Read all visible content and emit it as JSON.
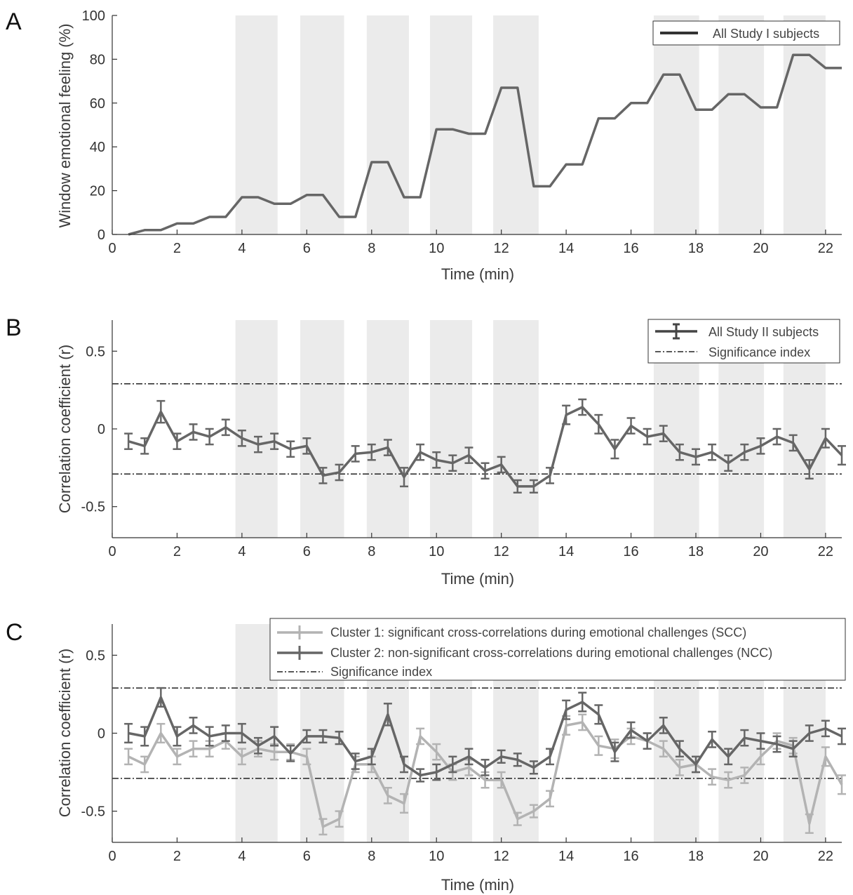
{
  "chart_data": [
    {
      "panel": "A",
      "type": "line",
      "xlabel": "Time (min)",
      "ylabel": "Window emotional feeling (%)",
      "xlim": [
        0,
        22.5
      ],
      "ylim": [
        0,
        100
      ],
      "xticks": [
        0,
        2,
        4,
        6,
        8,
        10,
        12,
        14,
        16,
        18,
        20,
        22
      ],
      "yticks": [
        0,
        20,
        40,
        60,
        80,
        100
      ],
      "shaded_intervals": [
        [
          3.8,
          5.1
        ],
        [
          5.8,
          7.15
        ],
        [
          7.85,
          9.15
        ],
        [
          9.8,
          11.1
        ],
        [
          11.75,
          13.15
        ],
        [
          16.7,
          18.1
        ],
        [
          18.7,
          20.1
        ],
        [
          20.7,
          22.0
        ]
      ],
      "legend": {
        "position": "top-right",
        "entries": [
          "All Study I subjects"
        ]
      },
      "series": [
        {
          "name": "All Study I subjects",
          "x": [
            0.5,
            1.0,
            1.5,
            2.0,
            2.5,
            3.0,
            3.5,
            4.0,
            4.5,
            5.0,
            5.5,
            6.0,
            6.5,
            7.0,
            7.5,
            8.0,
            8.5,
            9.0,
            9.5,
            10.0,
            10.5,
            11.0,
            11.5,
            12.0,
            12.5,
            13.0,
            13.5,
            14.0,
            14.5,
            15.0,
            15.5,
            16.0,
            16.5,
            17.0,
            17.5,
            18.0,
            18.5,
            19.0,
            19.5,
            20.0,
            20.5,
            21.0,
            21.5,
            22.0,
            22.5
          ],
          "values": [
            0,
            2,
            2,
            5,
            5,
            8,
            8,
            17,
            17,
            14,
            14,
            18,
            18,
            8,
            8,
            33,
            33,
            17,
            17,
            48,
            48,
            46,
            46,
            67,
            67,
            22,
            22,
            32,
            32,
            53,
            53,
            60,
            60,
            73,
            73,
            57,
            57,
            64,
            64,
            58,
            58,
            82,
            82,
            76,
            76
          ]
        }
      ]
    },
    {
      "panel": "B",
      "type": "line",
      "xlabel": "Time (min)",
      "ylabel": "Correlation coefficient (r)",
      "xlim": [
        0,
        22.5
      ],
      "ylim": [
        -0.7,
        0.7
      ],
      "xticks": [
        0,
        2,
        4,
        6,
        8,
        10,
        12,
        14,
        16,
        18,
        20,
        22
      ],
      "yticks": [
        -0.5,
        0,
        0.5
      ],
      "significance_levels": [
        0.29,
        -0.29
      ],
      "shaded_intervals": [
        [
          3.8,
          5.1
        ],
        [
          5.8,
          7.15
        ],
        [
          7.85,
          9.15
        ],
        [
          9.8,
          11.1
        ],
        [
          11.75,
          13.15
        ],
        [
          16.7,
          18.1
        ],
        [
          18.7,
          20.1
        ],
        [
          20.7,
          22.0
        ]
      ],
      "legend": {
        "position": "top-right",
        "entries": [
          "All Study II subjects",
          "Significance index"
        ]
      },
      "series": [
        {
          "name": "All Study II subjects",
          "x": [
            0.5,
            1.0,
            1.5,
            2.0,
            2.5,
            3.0,
            3.5,
            4.0,
            4.5,
            5.0,
            5.5,
            6.0,
            6.5,
            7.0,
            7.5,
            8.0,
            8.5,
            9.0,
            9.5,
            10.0,
            10.5,
            11.0,
            11.5,
            12.0,
            12.5,
            13.0,
            13.5,
            14.0,
            14.5,
            15.0,
            15.5,
            16.0,
            16.5,
            17.0,
            17.5,
            18.0,
            18.5,
            19.0,
            19.5,
            20.0,
            20.5,
            21.0,
            21.5,
            22.0,
            22.5
          ],
          "values": [
            -0.08,
            -0.11,
            0.11,
            -0.08,
            -0.02,
            -0.05,
            0.01,
            -0.06,
            -0.1,
            -0.08,
            -0.13,
            -0.11,
            -0.3,
            -0.28,
            -0.16,
            -0.15,
            -0.12,
            -0.31,
            -0.15,
            -0.2,
            -0.22,
            -0.17,
            -0.27,
            -0.23,
            -0.37,
            -0.37,
            -0.3,
            0.09,
            0.14,
            0.03,
            -0.13,
            0.02,
            -0.05,
            -0.03,
            -0.15,
            -0.18,
            -0.15,
            -0.22,
            -0.15,
            -0.11,
            -0.05,
            -0.09,
            -0.26,
            -0.06,
            -0.17
          ],
          "errors": [
            0.05,
            0.05,
            0.07,
            0.05,
            0.05,
            0.05,
            0.05,
            0.05,
            0.05,
            0.05,
            0.05,
            0.05,
            0.05,
            0.05,
            0.05,
            0.05,
            0.05,
            0.06,
            0.05,
            0.05,
            0.05,
            0.05,
            0.05,
            0.05,
            0.04,
            0.04,
            0.05,
            0.06,
            0.05,
            0.06,
            0.06,
            0.05,
            0.05,
            0.05,
            0.05,
            0.05,
            0.05,
            0.05,
            0.05,
            0.05,
            0.05,
            0.05,
            0.06,
            0.06,
            0.06
          ]
        }
      ]
    },
    {
      "panel": "C",
      "type": "line",
      "xlabel": "Time (min)",
      "ylabel": "Correlation coefficient (r)",
      "xlim": [
        0,
        22.5
      ],
      "ylim": [
        -0.7,
        0.7
      ],
      "xticks": [
        0,
        2,
        4,
        6,
        8,
        10,
        12,
        14,
        16,
        18,
        20,
        22
      ],
      "yticks": [
        -0.5,
        0,
        0.5
      ],
      "significance_levels": [
        0.29,
        -0.29
      ],
      "shaded_intervals": [
        [
          3.8,
          5.1
        ],
        [
          5.8,
          7.15
        ],
        [
          7.85,
          9.15
        ],
        [
          9.8,
          11.1
        ],
        [
          11.75,
          13.15
        ],
        [
          16.7,
          18.1
        ],
        [
          18.7,
          20.1
        ],
        [
          20.7,
          22.0
        ]
      ],
      "legend": {
        "position": "top-right",
        "entries": [
          "Cluster 1: significant cross-correlations during emotional challenges (SCC)",
          "Cluster 2: non-significant cross-correlations during emotional challenges (NCC)",
          "Significance index"
        ]
      },
      "series": [
        {
          "name": "Cluster 1: significant cross-correlations during emotional challenges (SCC)",
          "x": [
            0.5,
            1.0,
            1.5,
            2.0,
            2.5,
            3.0,
            3.5,
            4.0,
            4.5,
            5.0,
            5.5,
            6.0,
            6.5,
            7.0,
            7.5,
            8.0,
            8.5,
            9.0,
            9.5,
            10.0,
            10.5,
            11.0,
            11.5,
            12.0,
            12.5,
            13.0,
            13.5,
            14.0,
            14.5,
            15.0,
            15.5,
            16.0,
            16.5,
            17.0,
            17.5,
            18.0,
            18.5,
            19.0,
            19.5,
            20.0,
            20.5,
            21.0,
            21.5,
            22.0,
            22.5
          ],
          "values": [
            -0.15,
            -0.2,
            0.0,
            -0.15,
            -0.1,
            -0.1,
            -0.05,
            -0.15,
            -0.1,
            -0.12,
            -0.12,
            -0.15,
            -0.6,
            -0.55,
            -0.2,
            -0.2,
            -0.4,
            -0.45,
            -0.02,
            -0.12,
            -0.25,
            -0.22,
            -0.3,
            -0.3,
            -0.55,
            -0.5,
            -0.42,
            0.05,
            0.07,
            -0.08,
            -0.1,
            -0.02,
            -0.05,
            -0.1,
            -0.22,
            -0.2,
            -0.28,
            -0.3,
            -0.27,
            -0.15,
            -0.05,
            -0.08,
            -0.58,
            -0.15,
            -0.33
          ],
          "errors": [
            0.05,
            0.05,
            0.06,
            0.05,
            0.05,
            0.05,
            0.05,
            0.05,
            0.05,
            0.05,
            0.05,
            0.05,
            0.05,
            0.05,
            0.05,
            0.05,
            0.05,
            0.06,
            0.05,
            0.05,
            0.05,
            0.05,
            0.05,
            0.05,
            0.04,
            0.04,
            0.05,
            0.06,
            0.05,
            0.06,
            0.06,
            0.05,
            0.05,
            0.05,
            0.05,
            0.05,
            0.05,
            0.05,
            0.05,
            0.05,
            0.05,
            0.05,
            0.06,
            0.06,
            0.06
          ]
        },
        {
          "name": "Cluster 2: non-significant cross-correlations during emotional challenges (NCC)",
          "x": [
            0.5,
            1.0,
            1.5,
            2.0,
            2.5,
            3.0,
            3.5,
            4.0,
            4.5,
            5.0,
            5.5,
            6.0,
            6.5,
            7.0,
            7.5,
            8.0,
            8.5,
            9.0,
            9.5,
            10.0,
            10.5,
            11.0,
            11.5,
            12.0,
            12.5,
            13.0,
            13.5,
            14.0,
            14.5,
            15.0,
            15.5,
            16.0,
            16.5,
            17.0,
            17.5,
            18.0,
            18.5,
            19.0,
            19.5,
            20.0,
            20.5,
            21.0,
            21.5,
            22.0,
            22.5
          ],
          "values": [
            0.0,
            -0.02,
            0.23,
            -0.02,
            0.05,
            -0.02,
            0.0,
            0.0,
            -0.08,
            -0.02,
            -0.13,
            -0.02,
            -0.02,
            -0.03,
            -0.18,
            -0.15,
            0.12,
            -0.2,
            -0.27,
            -0.25,
            -0.2,
            -0.15,
            -0.22,
            -0.15,
            -0.17,
            -0.22,
            -0.15,
            0.15,
            0.2,
            0.12,
            -0.12,
            0.02,
            -0.05,
            0.05,
            -0.1,
            -0.2,
            -0.04,
            -0.15,
            -0.03,
            -0.05,
            -0.07,
            -0.1,
            0.0,
            0.03,
            -0.02
          ],
          "errors": [
            0.06,
            0.06,
            0.06,
            0.06,
            0.05,
            0.06,
            0.05,
            0.06,
            0.05,
            0.06,
            0.05,
            0.04,
            0.04,
            0.04,
            0.05,
            0.05,
            0.07,
            0.05,
            0.04,
            0.05,
            0.05,
            0.05,
            0.05,
            0.04,
            0.04,
            0.04,
            0.05,
            0.06,
            0.06,
            0.06,
            0.06,
            0.05,
            0.05,
            0.05,
            0.05,
            0.05,
            0.05,
            0.05,
            0.05,
            0.05,
            0.05,
            0.05,
            0.05,
            0.05,
            0.05
          ]
        }
      ]
    }
  ],
  "panels": {
    "A": {
      "letter": "A",
      "xlabel": "Time (min)",
      "ylabel": "Window emotional feeling (%)",
      "legend": [
        "All Study I subjects"
      ]
    },
    "B": {
      "letter": "B",
      "xlabel": "Time (min)",
      "ylabel": "Correlation coefficient (r)",
      "legend": [
        "All Study II subjects",
        "Significance index"
      ]
    },
    "C": {
      "letter": "C",
      "xlabel": "Time (min)",
      "ylabel": "Correlation coefficient (r)",
      "legend": [
        "Cluster 1: significant cross-correlations during emotional challenges (SCC)",
        "Cluster 2: non-significant cross-correlations during emotional challenges (NCC)",
        "Significance index"
      ]
    }
  },
  "colors": {
    "shade": "#ebebeb",
    "axis": "#333333",
    "series_dark": "#111111",
    "series_mid": "#666666",
    "series_light": "#b3b3b3",
    "significance": "#222222"
  }
}
